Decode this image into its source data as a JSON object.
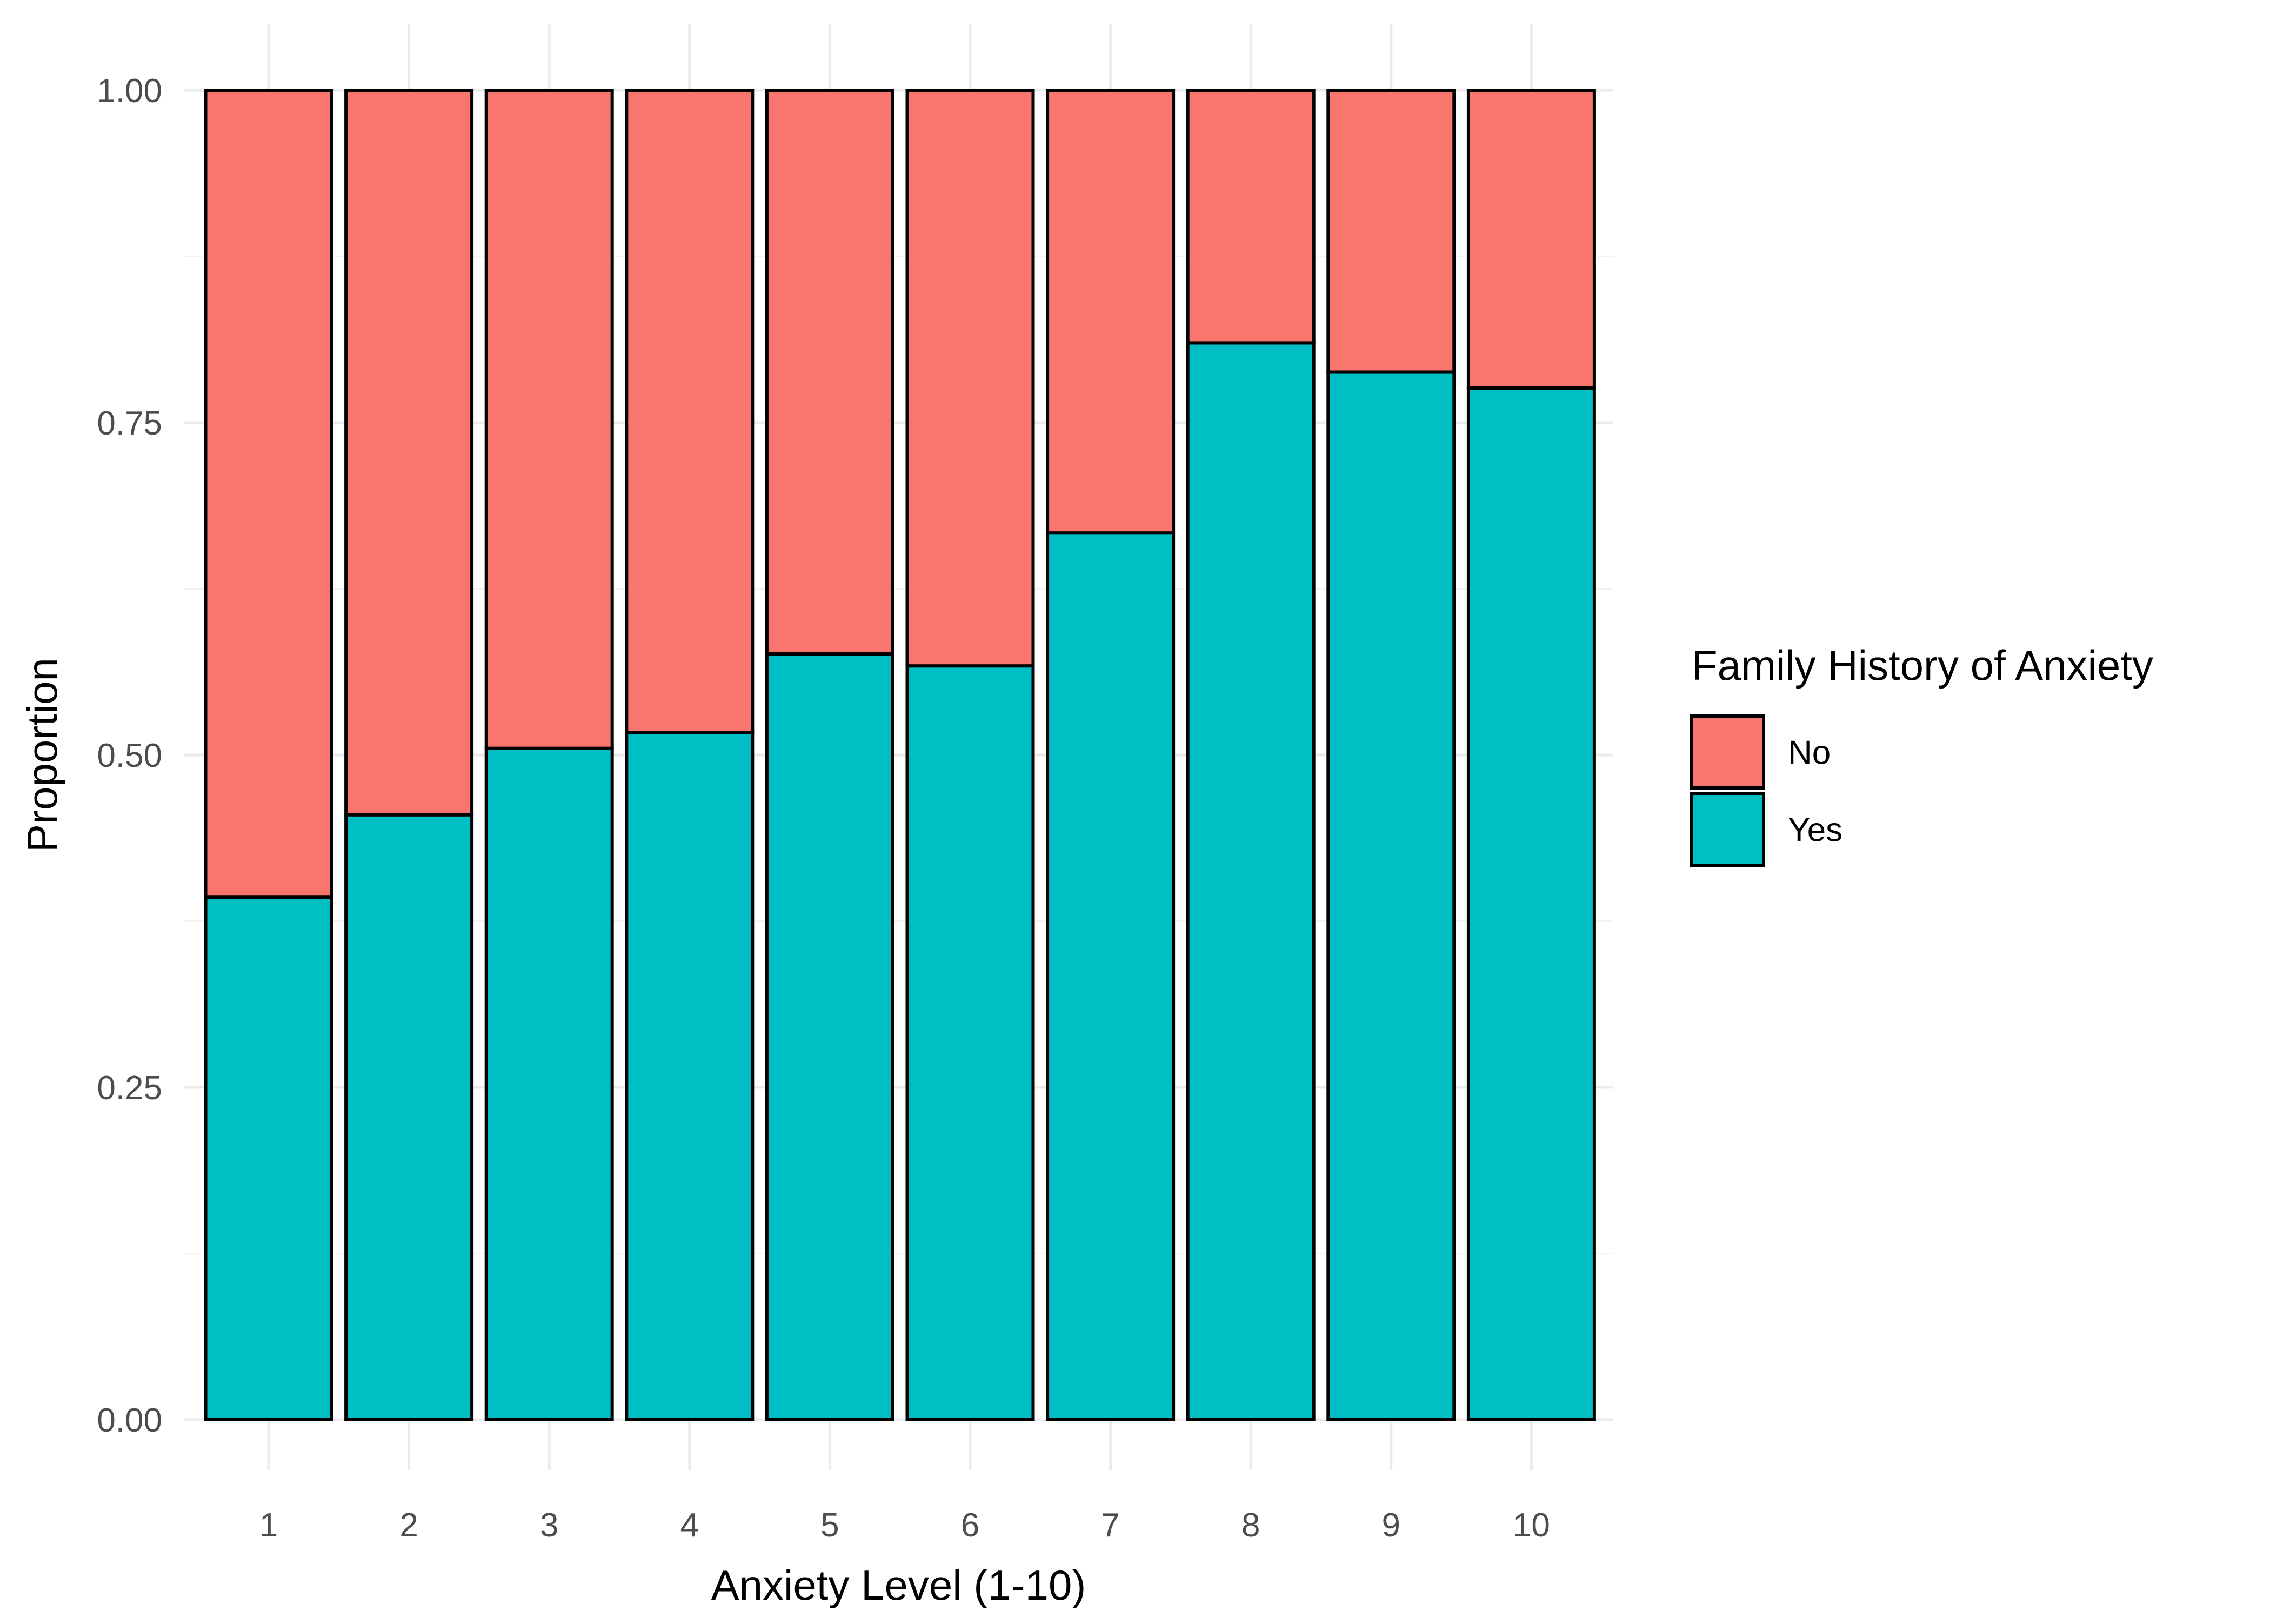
{
  "chart_data": {
    "type": "bar",
    "stacked": true,
    "position": "fill",
    "title": "",
    "xlabel": "Anxiety Level (1-10)",
    "ylabel": "Proportion",
    "categories": [
      "1",
      "2",
      "3",
      "4",
      "5",
      "6",
      "7",
      "8",
      "9",
      "10"
    ],
    "series": [
      {
        "name": "No",
        "color": "#F8766D",
        "values": [
          0.607,
          0.545,
          0.495,
          0.483,
          0.424,
          0.433,
          0.333,
          0.19,
          0.212,
          0.224
        ]
      },
      {
        "name": "Yes",
        "color": "#00BFC4",
        "values": [
          0.393,
          0.455,
          0.505,
          0.517,
          0.576,
          0.567,
          0.667,
          0.81,
          0.788,
          0.776
        ]
      }
    ],
    "ylim": [
      0,
      1
    ],
    "y_ticks": [
      "0.00",
      "0.25",
      "0.50",
      "0.75",
      "1.00"
    ],
    "grid": true,
    "legend": {
      "title": "Family History of Anxiety",
      "position": "right",
      "entries": [
        "No",
        "Yes"
      ]
    }
  }
}
